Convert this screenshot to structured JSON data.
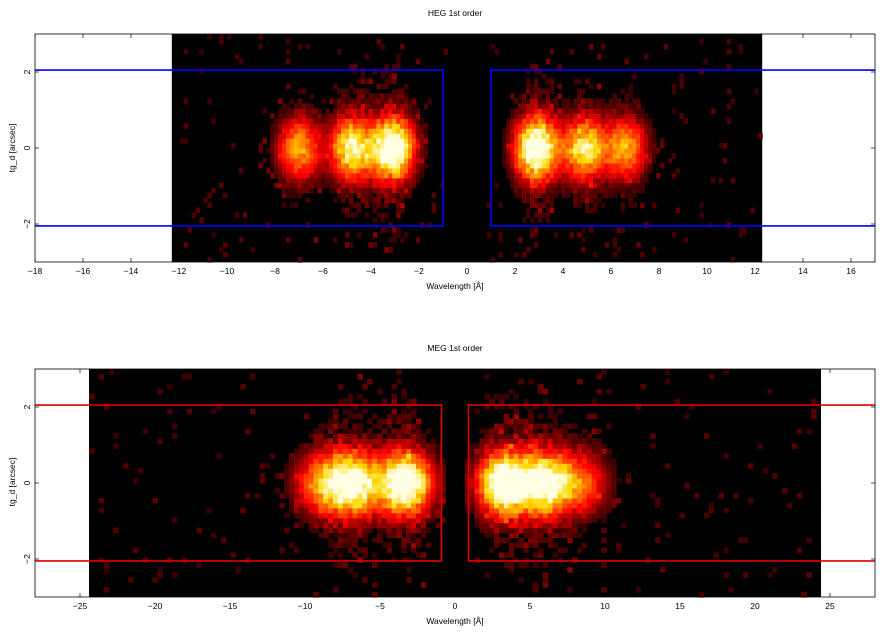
{
  "chart_data": [
    {
      "type": "heatmap",
      "title": "HEG 1st order",
      "xlabel": "Wavelength [Å]",
      "ylabel": "tg_d [arcsec]",
      "xlim": [
        -18,
        17
      ],
      "ylim": [
        -3,
        3
      ],
      "xticks": [
        -18,
        -16,
        -14,
        -12,
        -10,
        -8,
        -6,
        -4,
        -2,
        0,
        2,
        4,
        6,
        8,
        10,
        12,
        14,
        16
      ],
      "xtick_labels": [
        "−18",
        "−16",
        "−14",
        "−12",
        "−10",
        "−8",
        "−6",
        "−4",
        "−2",
        "0",
        "2",
        "4",
        "6",
        "8",
        "10",
        "12",
        "14",
        "16"
      ],
      "yticks": [
        -2,
        0,
        2
      ],
      "ytick_labels": [
        "−2",
        "0",
        "2"
      ],
      "image_extent_x": [
        -12.3,
        12.3
      ],
      "gap_x": [
        -1.0,
        1.0
      ],
      "source_y_center": 0,
      "emission_peaks": [
        {
          "x": -7.0,
          "intensity": 0.55
        },
        {
          "x": -4.8,
          "intensity": 0.75
        },
        {
          "x": -3.1,
          "intensity": 1.0
        },
        {
          "x": 2.9,
          "intensity": 1.0
        },
        {
          "x": 4.9,
          "intensity": 0.7
        },
        {
          "x": 6.6,
          "intensity": 0.55
        }
      ],
      "extraction_regions": [
        {
          "x": [
            -18,
            -1.0
          ],
          "y": [
            -2.05,
            2.05
          ]
        },
        {
          "x": [
            1.0,
            17
          ],
          "y": [
            -2.05,
            2.05
          ]
        }
      ],
      "region_color": "#0000ff",
      "colormap": "heat (black-red-orange-yellow-white)",
      "grid": false
    },
    {
      "type": "heatmap",
      "title": "MEG 1st order",
      "xlabel": "Wavelength [Å]",
      "ylabel": "tg_d [arcsec]",
      "xlim": [
        -28,
        28
      ],
      "ylim": [
        -3,
        3
      ],
      "xticks": [
        -25,
        -20,
        -15,
        -10,
        -5,
        0,
        5,
        10,
        15,
        20,
        25
      ],
      "xtick_labels": [
        "−25",
        "−20",
        "−15",
        "−10",
        "−5",
        "0",
        "5",
        "10",
        "15",
        "20",
        "25"
      ],
      "yticks": [
        -2,
        0,
        2
      ],
      "ytick_labels": [
        "−2",
        "0",
        "2"
      ],
      "image_extent_x": [
        -24.4,
        24.4
      ],
      "gap_x": [
        -0.9,
        0.9
      ],
      "source_y_center": 0,
      "emission_peaks": [
        {
          "x": -9.0,
          "intensity": 0.45
        },
        {
          "x": -6.8,
          "intensity": 0.9
        },
        {
          "x": -3.3,
          "intensity": 1.0
        },
        {
          "x": 3.3,
          "intensity": 1.0
        },
        {
          "x": 6.0,
          "intensity": 0.85
        },
        {
          "x": 8.5,
          "intensity": 0.4
        }
      ],
      "extraction_regions": [
        {
          "x": [
            -28,
            -0.9
          ],
          "y": [
            -2.05,
            2.05
          ]
        },
        {
          "x": [
            0.9,
            28
          ],
          "y": [
            -2.05,
            2.05
          ]
        }
      ],
      "region_color": "#dd0000",
      "colormap": "heat (black-red-orange-yellow-white)",
      "grid": false
    }
  ]
}
